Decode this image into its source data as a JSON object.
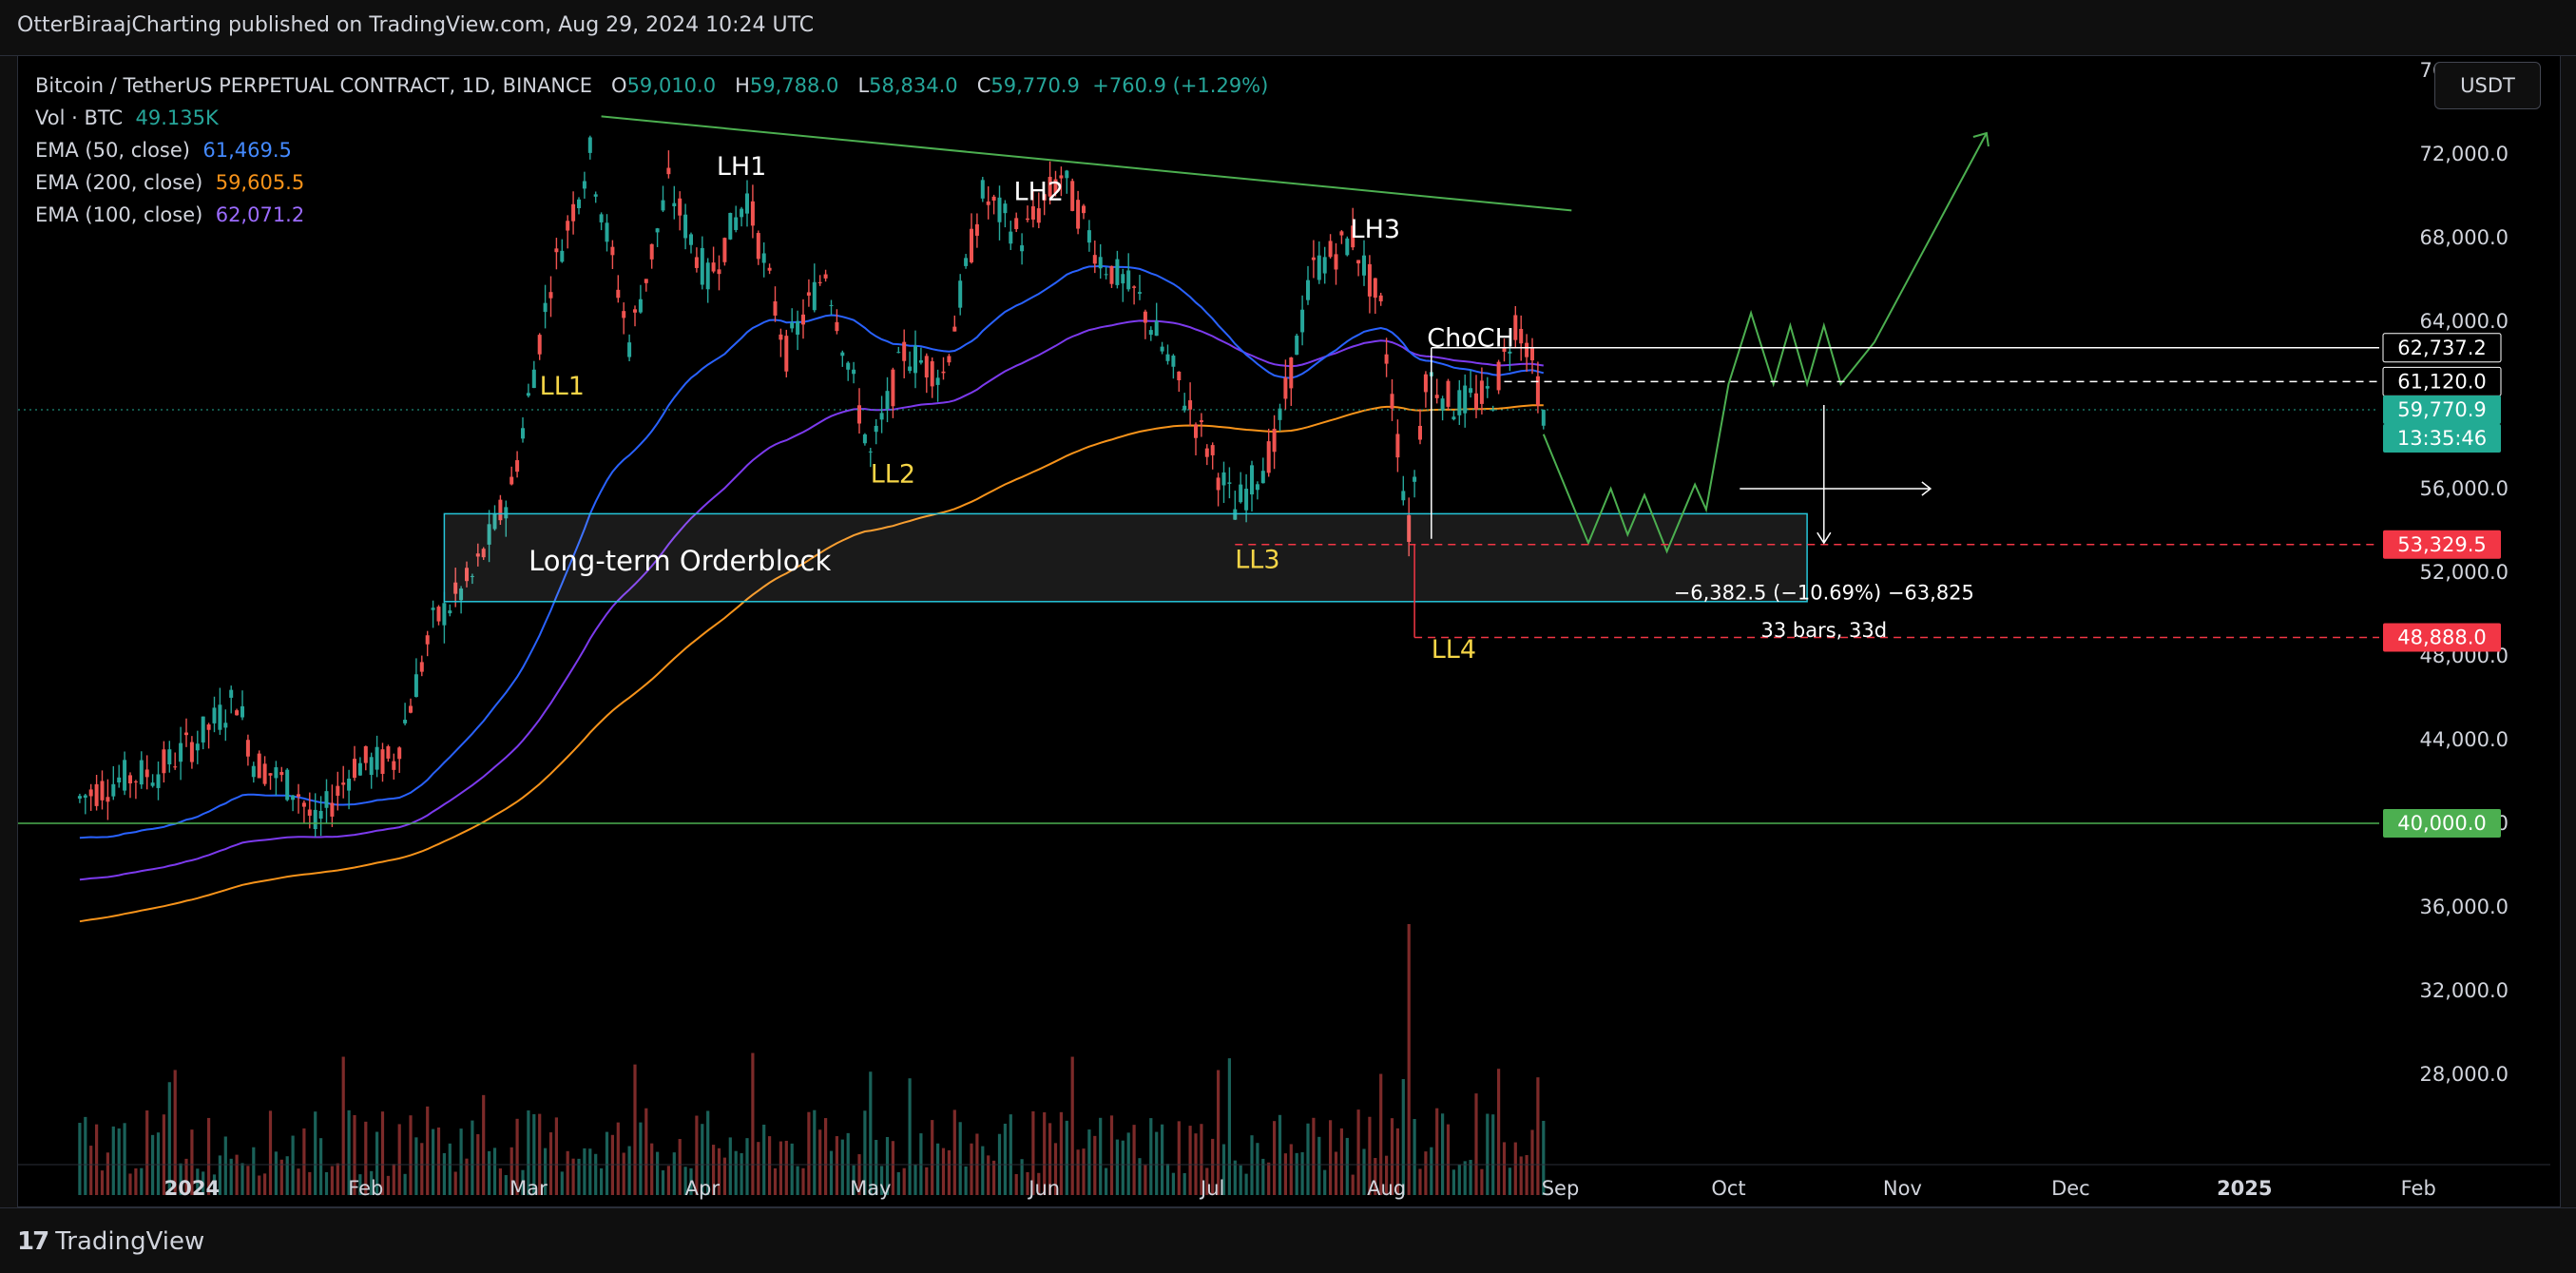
{
  "header": {
    "published": "OtterBiraajCharting published on TradingView.com, Aug 29, 2024 10:24 UTC"
  },
  "legend": {
    "symbol": "Bitcoin / TetherUS PERPETUAL CONTRACT, 1D, BINANCE",
    "o_label": "O",
    "o": "59,010.0",
    "h_label": "H",
    "h": "59,788.0",
    "l_label": "L",
    "l": "58,834.0",
    "c_label": "C",
    "c": "59,770.9",
    "change": "+760.9 (+1.29%)",
    "vol_label": "Vol · BTC",
    "vol": "49.135K",
    "ema50_label": "EMA (50, close)",
    "ema50": "61,469.5",
    "ema200_label": "EMA (200, close)",
    "ema200": "59,605.5",
    "ema100_label": "EMA (100, close)",
    "ema100": "62,071.2"
  },
  "currency_button": "USDT",
  "footer": {
    "brand": "TradingView"
  },
  "colors": {
    "up": "#26a69a",
    "down": "#ef5350",
    "ema50": "#2962ff",
    "ema100": "#7c3aed",
    "ema200": "#f7931a",
    "trend": "#4caf50",
    "orderblock": "#26c6da",
    "annot_yellow": "#f5d547",
    "price_label": "#22ab94",
    "red_label": "#f23645"
  },
  "chart_data": {
    "type": "candlestick",
    "title": "Bitcoin / TetherUS PERPETUAL CONTRACT, 1D, BINANCE",
    "x_ticks": [
      "2024",
      "Feb",
      "Mar",
      "Apr",
      "May",
      "Jun",
      "Jul",
      "Aug",
      "Sep",
      "Oct",
      "Nov",
      "Dec",
      "2025",
      "Feb"
    ],
    "y_ticks": [
      "76,000.0",
      "72,000.0",
      "68,000.0",
      "64,000.0",
      "56,000.0",
      "52,000.0",
      "48,000.0",
      "44,000.0",
      "40,000.0",
      "36,000.0",
      "32,000.0",
      "28,000.0"
    ],
    "ylim": [
      27000,
      77000
    ],
    "price_labels": [
      {
        "text": "62,737.2",
        "value": 62737.2,
        "style": "white"
      },
      {
        "text": "61,120.0",
        "value": 61120.0,
        "style": "white"
      },
      {
        "text": "59,770.9",
        "value": 59770.9,
        "style": "green"
      },
      {
        "text": "13:35:46",
        "value": null,
        "style": "green-sub"
      },
      {
        "text": "53,329.5",
        "value": 53329.5,
        "style": "red"
      },
      {
        "text": "48,888.0",
        "value": 48888.0,
        "style": "red"
      },
      {
        "text": "40,000.0",
        "value": 40000.0,
        "style": "lime"
      }
    ],
    "annotations": [
      {
        "text": "LH1",
        "color": "white"
      },
      {
        "text": "LH2",
        "color": "white"
      },
      {
        "text": "LH3",
        "color": "white"
      },
      {
        "text": "LL1",
        "color": "yellow"
      },
      {
        "text": "LL2",
        "color": "yellow"
      },
      {
        "text": "LL3",
        "color": "yellow"
      },
      {
        "text": "LL4",
        "color": "yellow"
      },
      {
        "text": "ChoCH",
        "color": "white"
      },
      {
        "text": "Long-term Orderblock",
        "color": "white"
      },
      {
        "text": "−6,382.5 (−10.69%) −63,825",
        "color": "white"
      },
      {
        "text": "33 bars, 33d",
        "color": "white"
      }
    ],
    "horizontal_levels": [
      62737.2,
      61120.0,
      53329.5,
      48888.0,
      40000.0
    ],
    "orderblock": {
      "from_date": "2024-02-15",
      "to_date": "2024-10-15",
      "top": 54800,
      "bottom": 50600
    },
    "trendline": {
      "from": [
        "2024-03-14",
        73800
      ],
      "to": [
        "2024-09-03",
        69300
      ]
    },
    "projection": [
      [
        "2024-08-29",
        58600
      ],
      [
        "2024-09-06",
        53400
      ],
      [
        "2024-09-10",
        56000
      ],
      [
        "2024-09-13",
        53800
      ],
      [
        "2024-09-16",
        55700
      ],
      [
        "2024-09-20",
        53000
      ],
      [
        "2024-09-25",
        56200
      ],
      [
        "2024-09-27",
        55000
      ],
      [
        "2024-10-01",
        61000
      ],
      [
        "2024-10-05",
        64400
      ],
      [
        "2024-10-09",
        61000
      ],
      [
        "2024-10-12",
        63800
      ],
      [
        "2024-10-15",
        61000
      ],
      [
        "2024-10-18",
        63800
      ],
      [
        "2024-10-21",
        61000
      ],
      [
        "2024-10-27",
        63000
      ],
      [
        "2024-11-16",
        73000
      ]
    ],
    "weekly_anchors": [
      [
        "2023-12-12",
        41200
      ],
      [
        "2023-12-19",
        42100
      ],
      [
        "2023-12-26",
        42500
      ],
      [
        "2024-01-02",
        44000
      ],
      [
        "2024-01-09",
        46000
      ],
      [
        "2024-01-12",
        43000
      ],
      [
        "2024-01-20",
        41500
      ],
      [
        "2024-01-23",
        39800
      ],
      [
        "2024-01-30",
        42800
      ],
      [
        "2024-02-06",
        43000
      ],
      [
        "2024-02-13",
        49500
      ],
      [
        "2024-02-20",
        51700
      ],
      [
        "2024-02-27",
        56000
      ],
      [
        "2024-03-05",
        66000
      ],
      [
        "2024-03-12",
        72000
      ],
      [
        "2024-03-19",
        63000
      ],
      [
        "2024-03-26",
        70500
      ],
      [
        "2024-04-02",
        66000
      ],
      [
        "2024-04-09",
        70000
      ],
      [
        "2024-04-16",
        62500
      ],
      [
        "2024-04-23",
        66500
      ],
      [
        "2024-05-01",
        57500
      ],
      [
        "2024-05-07",
        62500
      ],
      [
        "2024-05-14",
        61500
      ],
      [
        "2024-05-21",
        70000
      ],
      [
        "2024-05-28",
        68000
      ],
      [
        "2024-06-04",
        71000
      ],
      [
        "2024-06-11",
        67000
      ],
      [
        "2024-06-18",
        65000
      ],
      [
        "2024-06-25",
        61000
      ],
      [
        "2024-07-05",
        55000
      ],
      [
        "2024-07-12",
        58000
      ],
      [
        "2024-07-19",
        66500
      ],
      [
        "2024-07-26",
        68000
      ],
      [
        "2024-07-31",
        64500
      ],
      [
        "2024-08-05",
        54000
      ],
      [
        "2024-08-08",
        61500
      ],
      [
        "2024-08-13",
        60000
      ],
      [
        "2024-08-20",
        60500
      ],
      [
        "2024-08-24",
        64000
      ],
      [
        "2024-08-26",
        63000
      ],
      [
        "2024-08-29",
        59770
      ]
    ]
  }
}
